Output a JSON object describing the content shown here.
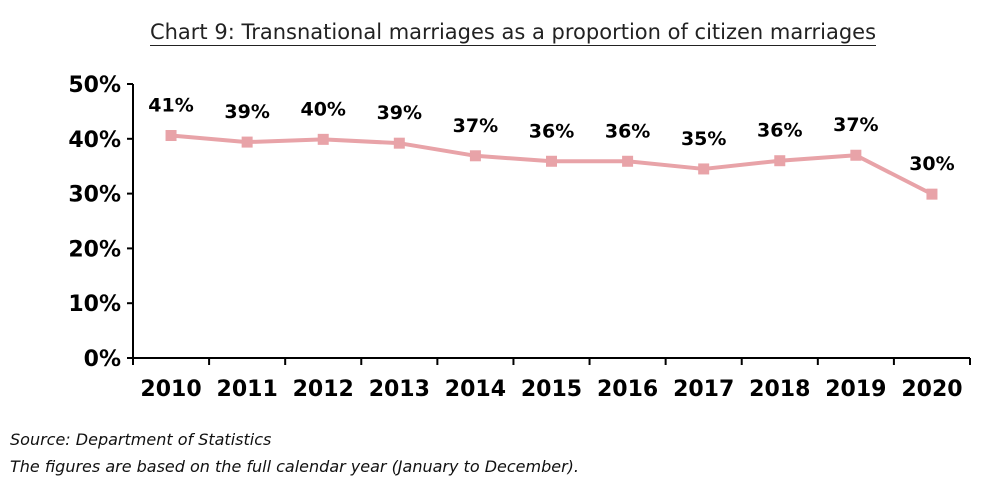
{
  "chart_data": {
    "type": "line",
    "title": "Chart 9: Transnational marriages as a proportion of citizen marriages",
    "categories": [
      "2010",
      "2011",
      "2012",
      "2013",
      "2014",
      "2015",
      "2016",
      "2017",
      "2018",
      "2019",
      "2020"
    ],
    "series": [
      {
        "values": [
          40.6,
          39.4,
          39.9,
          39.2,
          36.9,
          35.9,
          35.9,
          34.5,
          36.0,
          37.0,
          29.9
        ],
        "data_labels": [
          "41%",
          "39%",
          "40%",
          "39%",
          "37%",
          "36%",
          "36%",
          "35%",
          "36%",
          "37%",
          "30%"
        ],
        "color": "#e8a3a8"
      }
    ],
    "ylim": [
      0,
      50
    ],
    "y_ticks": [
      0,
      10,
      20,
      30,
      40,
      50
    ],
    "y_tick_labels": [
      "0%",
      "10%",
      "20%",
      "30%",
      "40%",
      "50%"
    ],
    "grid": false,
    "legend": "none"
  },
  "notes": {
    "source": "Source: Department of Statistics",
    "footnote": "The figures are based on the full calendar year (January to December)."
  }
}
